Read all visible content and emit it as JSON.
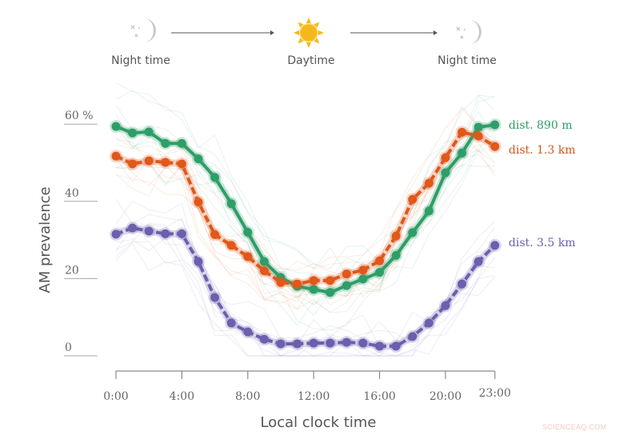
{
  "header": {
    "phases": [
      {
        "label": "Night time",
        "icon": "moon-icon"
      },
      {
        "label": "Daytime",
        "icon": "sun-icon"
      },
      {
        "label": "Night time",
        "icon": "moon-icon"
      }
    ]
  },
  "colors": {
    "green": "#2e9e68",
    "orange": "#e0581a",
    "purple": "#6b5fae",
    "axis": "#9a9a9a",
    "sun": "#f5b81c",
    "moon": "#c9c9c9"
  },
  "watermark": "SCIENCEAQ.COM",
  "chart_data": {
    "type": "line",
    "title": "",
    "xlabel": "Local clock time",
    "ylabel": "AM prevalence",
    "x": [
      0,
      1,
      2,
      3,
      4,
      5,
      6,
      7,
      8,
      9,
      10,
      11,
      12,
      13,
      14,
      15,
      16,
      17,
      18,
      19,
      20,
      21,
      22,
      23
    ],
    "xticks": [
      0,
      4,
      8,
      12,
      16,
      20,
      23
    ],
    "xtick_labels": [
      "0:00",
      "4:00",
      "8:00",
      "12:00",
      "16:00",
      "20:00",
      "23:00"
    ],
    "yticks": [
      0,
      20,
      40,
      60
    ],
    "ytick_labels": [
      "0",
      "20",
      "40",
      "60 %"
    ],
    "ylim": [
      0,
      60
    ],
    "xlim": [
      0,
      23
    ],
    "grid": false,
    "legend_position": "right-inline",
    "annotations": [
      "Night time",
      "Daytime",
      "Night time"
    ],
    "series": [
      {
        "name": "dist. 890 m",
        "color": "#2e9e68",
        "dash": false,
        "values": [
          59.4,
          57.7,
          58.0,
          55.0,
          55.0,
          51.0,
          46.2,
          39.4,
          32.0,
          24.4,
          20.3,
          18.0,
          17.2,
          16.4,
          18.2,
          19.9,
          21.6,
          26.0,
          31.9,
          37.5,
          47.4,
          52.5,
          59.2,
          59.8
        ]
      },
      {
        "name": "dist. 1.3 km",
        "color": "#e0581a",
        "dash": true,
        "values": [
          51.7,
          49.7,
          50.5,
          50.1,
          49.7,
          39.8,
          31.4,
          28.6,
          25.7,
          22.0,
          19.0,
          18.6,
          19.5,
          19.5,
          21.2,
          22.2,
          24.6,
          31.0,
          40.5,
          44.7,
          51.3,
          57.9,
          56.9,
          54.2
        ]
      },
      {
        "name": "dist. 3.5 km",
        "color": "#6b5fae",
        "dash": true,
        "values": [
          31.5,
          33.1,
          32.3,
          31.6,
          31.6,
          24.4,
          15.1,
          8.5,
          6.2,
          4.3,
          3.1,
          3.1,
          3.3,
          3.3,
          3.5,
          3.3,
          2.5,
          2.5,
          5.0,
          8.5,
          13.0,
          18.6,
          24.4,
          28.6
        ]
      }
    ]
  }
}
